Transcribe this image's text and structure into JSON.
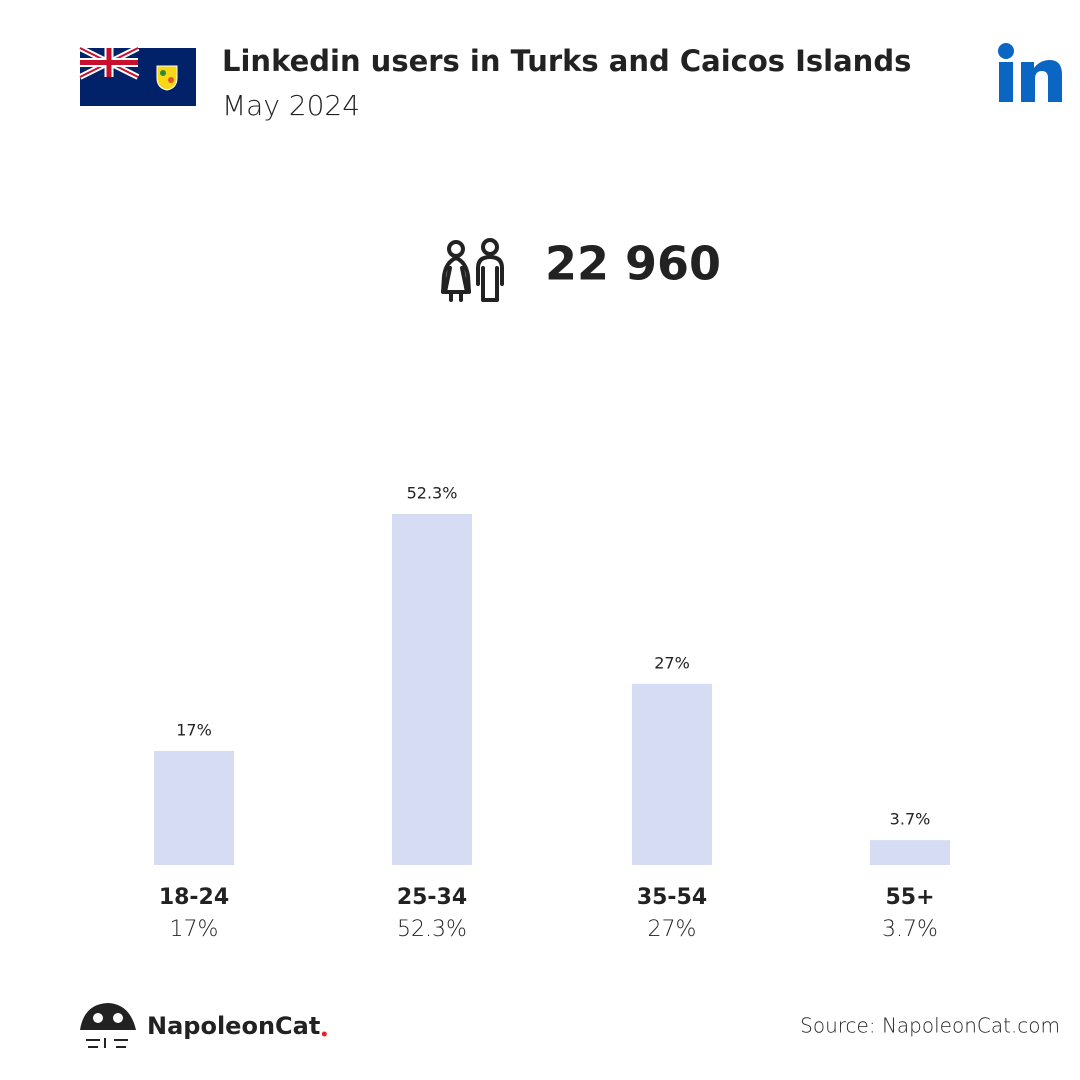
{
  "chart_data": {
    "type": "bar",
    "title": "Linkedin users in Turks and Caicos Islands",
    "subtitle": "May 2024",
    "total": "22 960",
    "categories": [
      "18-24",
      "25-34",
      "35-54",
      "55+"
    ],
    "values": [
      17,
      52.3,
      27,
      3.7
    ],
    "value_labels": [
      "17%",
      "52.3%",
      "27%",
      "3.7%"
    ],
    "color": "#d6dcf3"
  },
  "footer": {
    "brand": "NapoleonCat",
    "source": "Source: NapoleonCat.com"
  }
}
